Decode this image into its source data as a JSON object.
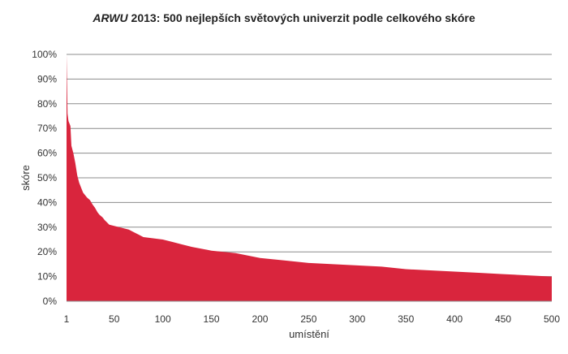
{
  "chart_data": {
    "type": "area",
    "title_italic": "ARWU",
    "title_rest": " 2013: 500 nejlepších světových univerzit podle celkového skóre",
    "xlabel": "umístění",
    "ylabel": "skóre",
    "xlim": [
      1,
      500
    ],
    "ylim": [
      0,
      100
    ],
    "x_ticks": [
      {
        "value": 1,
        "label": "1"
      },
      {
        "value": 50,
        "label": "50"
      },
      {
        "value": 100,
        "label": "100"
      },
      {
        "value": 150,
        "label": "150"
      },
      {
        "value": 200,
        "label": "200"
      },
      {
        "value": 250,
        "label": "250"
      },
      {
        "value": 300,
        "label": "300"
      },
      {
        "value": 350,
        "label": "350"
      },
      {
        "value": 400,
        "label": "400"
      },
      {
        "value": 450,
        "label": "450"
      },
      {
        "value": 500,
        "label": "500"
      }
    ],
    "y_ticks": [
      {
        "value": 0,
        "label": "0%"
      },
      {
        "value": 10,
        "label": "10%"
      },
      {
        "value": 20,
        "label": "20%"
      },
      {
        "value": 30,
        "label": "30%"
      },
      {
        "value": 40,
        "label": "40%"
      },
      {
        "value": 50,
        "label": "50%"
      },
      {
        "value": 60,
        "label": "60%"
      },
      {
        "value": 70,
        "label": "70%"
      },
      {
        "value": 80,
        "label": "80%"
      },
      {
        "value": 90,
        "label": "90%"
      },
      {
        "value": 100,
        "label": "100%"
      }
    ],
    "grid": true,
    "color": "#d9253d",
    "series": [
      {
        "x": [
          1,
          2,
          3,
          4,
          5,
          6,
          8,
          10,
          12,
          14,
          16,
          18,
          20,
          22,
          25,
          28,
          30,
          33,
          35,
          38,
          40,
          45,
          50,
          55,
          60,
          65,
          70,
          75,
          80,
          90,
          100,
          110,
          120,
          130,
          150,
          175,
          200,
          225,
          250,
          275,
          300,
          325,
          350,
          375,
          400,
          425,
          450,
          475,
          500
        ],
        "y": [
          100,
          76,
          73,
          72,
          71,
          63,
          60,
          56,
          51,
          48,
          46,
          44,
          43,
          42,
          41,
          39,
          38,
          36,
          35,
          34,
          33,
          31,
          30.5,
          30,
          29.5,
          29,
          28,
          27,
          26,
          25.5,
          25,
          24,
          23,
          22,
          20.5,
          19.5,
          17.5,
          16.5,
          15.5,
          15,
          14.5,
          14,
          13,
          12.5,
          12,
          11.5,
          11,
          10.5,
          10
        ]
      }
    ]
  }
}
